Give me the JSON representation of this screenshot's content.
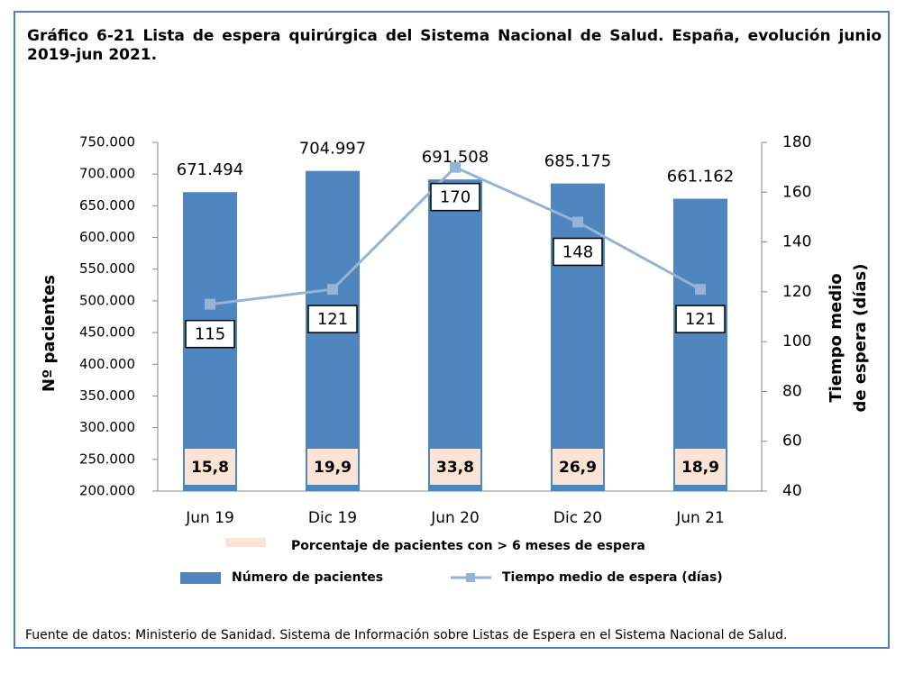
{
  "chart_data": {
    "type": "bar",
    "title": "Gráfico 6-21 Lista de espera quirúrgica del Sistema Nacional de Salud. España, evolución junio 2019-jun 2021.",
    "ylabel": "Nº pacientes",
    "y2label": [
      "Tiempo medio",
      "de espera (días)"
    ],
    "categories": [
      "Jun 19",
      "Dic 19",
      "Jun 20",
      "Dic 20",
      "Jun 21"
    ],
    "series": [
      {
        "name": "Número de pacientes",
        "color": "#4f86bf",
        "values": [
          671494,
          704997,
          691508,
          685175,
          661162
        ],
        "value_labels": [
          "671.494",
          "704.997",
          "691.508",
          "685.175",
          "661.162"
        ]
      },
      {
        "name": "Tiempo medio de espera (días)",
        "color": "#95b3d7",
        "axis": "y2",
        "type": "line",
        "values": [
          115,
          121,
          170,
          148,
          121
        ]
      },
      {
        "name": "Porcentaje de pacientes con > 6 meses de espera",
        "color": "#fbe4d5",
        "type": "label-box",
        "values": [
          15.8,
          19.9,
          33.8,
          26.9,
          18.9
        ],
        "value_labels": [
          "15,8",
          "19,9",
          "33,8",
          "26,9",
          "18,9"
        ]
      }
    ],
    "ylim": [
      200000,
      750000
    ],
    "yticks": [
      {
        "value": 200000,
        "label": "200.000"
      },
      {
        "value": 250000,
        "label": "250.000"
      },
      {
        "value": 300000,
        "label": "300.000"
      },
      {
        "value": 350000,
        "label": "350.000"
      },
      {
        "value": 400000,
        "label": "400.000"
      },
      {
        "value": 450000,
        "label": "450.000"
      },
      {
        "value": 500000,
        "label": "500.000"
      },
      {
        "value": 550000,
        "label": "550.000"
      },
      {
        "value": 600000,
        "label": "600.000"
      },
      {
        "value": 650000,
        "label": "650.000"
      },
      {
        "value": 700000,
        "label": "700.000"
      },
      {
        "value": 750000,
        "label": "750.000"
      }
    ],
    "y2lim": [
      40,
      180
    ],
    "y2ticks": [
      40,
      60,
      80,
      100,
      120,
      140,
      160,
      180
    ],
    "grid": false,
    "source": "Fuente de datos: Ministerio de Sanidad. Sistema de Información sobre Listas de Espera en el Sistema Nacional de Salud."
  }
}
